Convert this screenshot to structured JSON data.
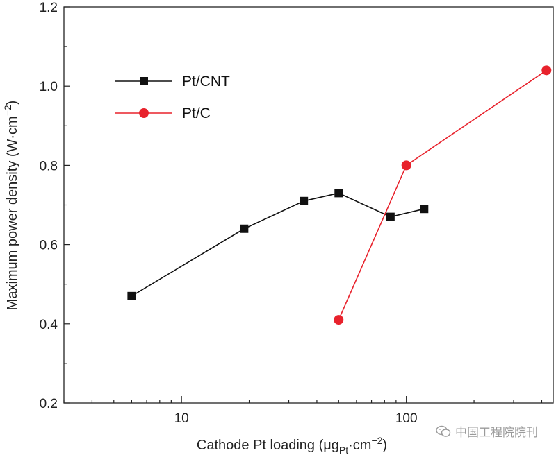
{
  "chart_data": {
    "type": "line",
    "xscale": "log",
    "xlim": [
      3,
      450
    ],
    "ylim": [
      0.2,
      1.2
    ],
    "x_ticks": [
      10,
      100
    ],
    "x_tick_labels": [
      "10",
      "100"
    ],
    "y_ticks": [
      0.2,
      0.4,
      0.6,
      0.8,
      1.0,
      1.2
    ],
    "y_tick_labels": [
      "0.2",
      "0.4",
      "0.6",
      "0.8",
      "1.0",
      "1.2"
    ],
    "xlabel": {
      "main": "Cathode Pt loading (μg",
      "sub": "Pt",
      "mid": "·cm",
      "sup": "−2",
      "end": ")"
    },
    "ylabel": {
      "main": "Maximum power density (W·cm",
      "sup": "−2",
      "end": ")"
    },
    "legend_position": "top-left",
    "series": [
      {
        "name": "Pt/CNT",
        "color": "#111111",
        "marker": "square",
        "x": [
          6,
          19,
          35,
          50,
          85,
          120
        ],
        "y": [
          0.47,
          0.64,
          0.71,
          0.73,
          0.67,
          0.69
        ]
      },
      {
        "name": "Pt/C",
        "color": "#e8222c",
        "marker": "circle",
        "x": [
          50,
          100,
          420
        ],
        "y": [
          0.41,
          0.8,
          1.04
        ]
      }
    ]
  },
  "watermark": {
    "text": "中国工程院院刊",
    "icon": "wechat-icon"
  }
}
